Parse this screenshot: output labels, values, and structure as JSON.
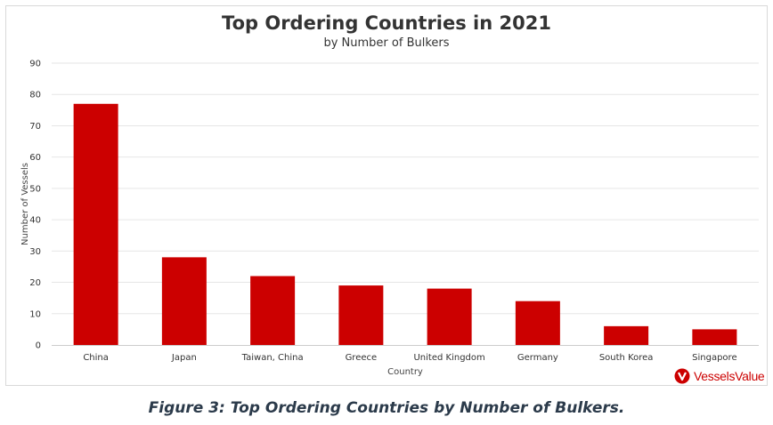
{
  "chart_data": {
    "type": "bar",
    "title": "Top Ordering Countries in 2021",
    "subtitle": "by Number of Bulkers",
    "xlabel": "Country",
    "ylabel": "Number of Vessels",
    "categories": [
      "China",
      "Japan",
      "Taiwan, China",
      "Greece",
      "United Kingdom",
      "Germany",
      "South Korea",
      "Singapore"
    ],
    "values": [
      77,
      28,
      22,
      19,
      18,
      14,
      6,
      5
    ],
    "ylim": [
      0,
      90
    ],
    "yticks": [
      0,
      10,
      20,
      30,
      40,
      50,
      60,
      70,
      80,
      90
    ],
    "grid": true,
    "legend": "none",
    "bar_color": "#cc0000"
  },
  "caption": "Figure 3: Top Ordering Countries by Number of Bulkers.",
  "brand": {
    "name": "VesselsValue",
    "icon": "vesselsvalue-logo-icon",
    "color": "#cc0000"
  }
}
